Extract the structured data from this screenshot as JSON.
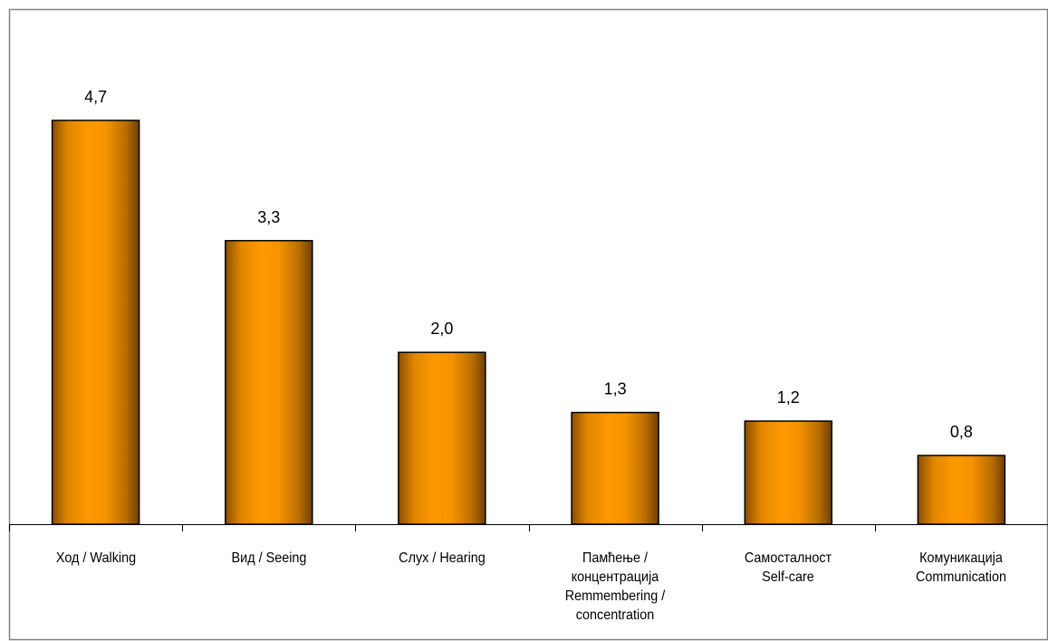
{
  "chart_data": {
    "type": "bar",
    "categories": [
      "Ход / Walking",
      "Вид / Seeing",
      "Слух / Hearing",
      "Памћење /\nконцентрација\nRemmembering /\nconcentration",
      "Самосталност\nSelf-care",
      "Комуникација\nCommunication"
    ],
    "values": [
      4.7,
      3.3,
      2.0,
      1.3,
      1.2,
      0.8
    ],
    "value_labels": [
      "4,7",
      "3,3",
      "2,0",
      "1,3",
      "1,2",
      "0,8"
    ],
    "title": "",
    "xlabel": "",
    "ylabel": "",
    "ylim": [
      0,
      5.5
    ],
    "grid": false,
    "legend": "none",
    "bar_color": "#FF9900",
    "bar_edge_color": "#7A4A00",
    "frame_color": "#808080"
  }
}
